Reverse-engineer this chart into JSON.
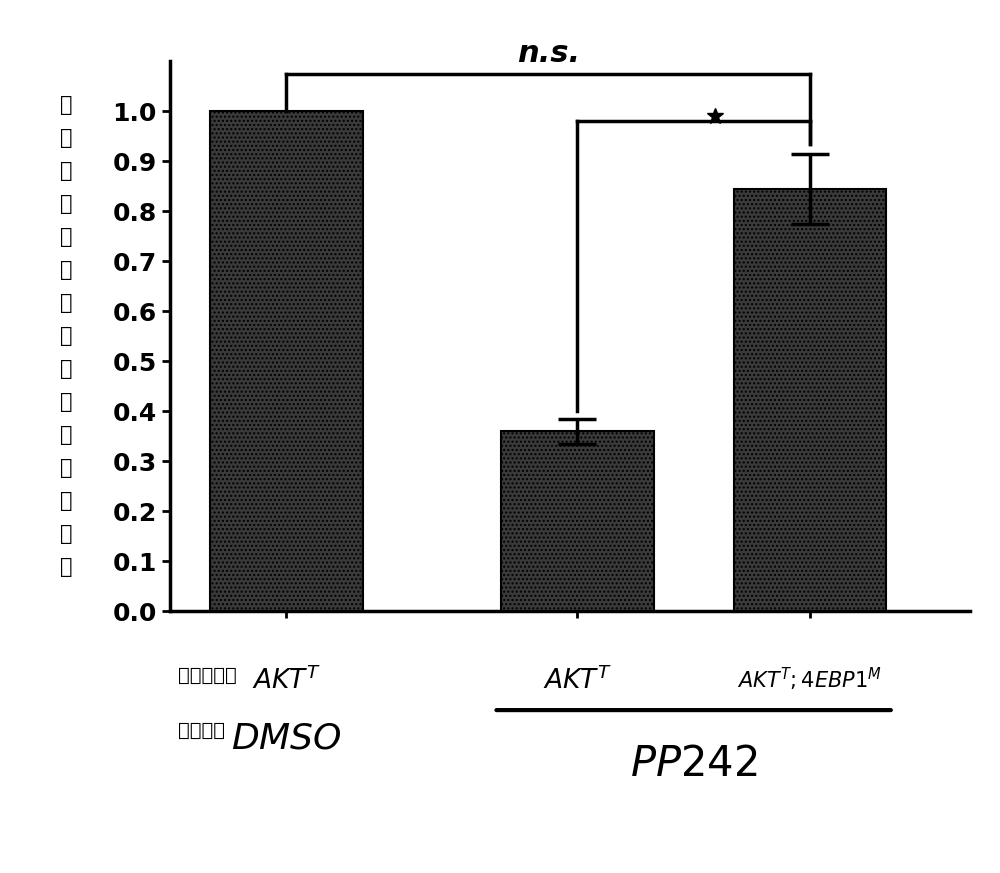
{
  "values": [
    1.0,
    0.36,
    0.845
  ],
  "errors": [
    0.0,
    0.025,
    0.07
  ],
  "bar_color": "#3a3a3a",
  "ylabel_chars": [
    "相",
    "较",
    "于",
    "媒",
    "剂",
    "对",
    "照",
    "的",
    "活",
    "细",
    "胞",
    "降",
    "低",
    "倍",
    "数"
  ],
  "ylim": [
    0.0,
    1.1
  ],
  "yticks": [
    0.0,
    0.1,
    0.2,
    0.3,
    0.4,
    0.5,
    0.6,
    0.7,
    0.8,
    0.9,
    1.0
  ],
  "ns_label": "n.s.",
  "star_label": "*",
  "background_color": "#ffffff",
  "cell_type_label": "细胞类型：",
  "treatment_label": "处理剂：",
  "dmso_label": "DMSO",
  "pp242_label": "PP242"
}
